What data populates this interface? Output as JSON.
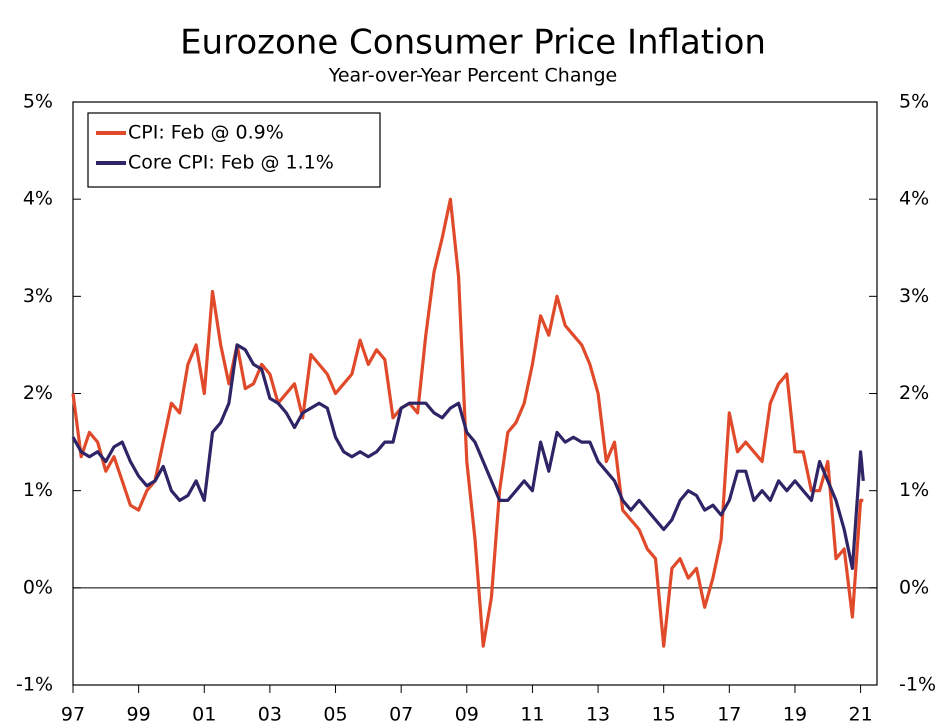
{
  "chart_data": {
    "type": "line",
    "title": "Eurozone Consumer Price Inflation",
    "subtitle": "Year-over-Year Percent Change",
    "x": [
      1997.0,
      1997.25,
      1997.5,
      1997.75,
      1998.0,
      1998.25,
      1998.5,
      1998.75,
      1999.0,
      1999.25,
      1999.5,
      1999.75,
      2000.0,
      2000.25,
      2000.5,
      2000.75,
      2001.0,
      2001.25,
      2001.5,
      2001.75,
      2002.0,
      2002.25,
      2002.5,
      2002.75,
      2003.0,
      2003.25,
      2003.5,
      2003.75,
      2004.0,
      2004.25,
      2004.5,
      2004.75,
      2005.0,
      2005.25,
      2005.5,
      2005.75,
      2006.0,
      2006.25,
      2006.5,
      2006.75,
      2007.0,
      2007.25,
      2007.5,
      2007.75,
      2008.0,
      2008.25,
      2008.5,
      2008.75,
      2009.0,
      2009.25,
      2009.5,
      2009.75,
      2010.0,
      2010.25,
      2010.5,
      2010.75,
      2011.0,
      2011.25,
      2011.5,
      2011.75,
      2012.0,
      2012.25,
      2012.5,
      2012.75,
      2013.0,
      2013.25,
      2013.5,
      2013.75,
      2014.0,
      2014.25,
      2014.5,
      2014.75,
      2015.0,
      2015.25,
      2015.5,
      2015.75,
      2016.0,
      2016.25,
      2016.5,
      2016.75,
      2017.0,
      2017.25,
      2017.5,
      2017.75,
      2018.0,
      2018.25,
      2018.5,
      2018.75,
      2019.0,
      2019.25,
      2019.5,
      2019.75,
      2020.0,
      2020.25,
      2020.5,
      2020.75,
      2021.0,
      2021.083
    ],
    "series": [
      {
        "name": "CPI: Feb @ 0.9%",
        "color": "#e04a2a",
        "values": [
          2.0,
          1.35,
          1.6,
          1.5,
          1.2,
          1.35,
          1.1,
          0.85,
          0.8,
          1.0,
          1.1,
          1.5,
          1.9,
          1.8,
          2.3,
          2.5,
          2.0,
          3.05,
          2.5,
          2.1,
          2.5,
          2.05,
          2.1,
          2.3,
          2.2,
          1.9,
          2.0,
          2.1,
          1.75,
          2.4,
          2.3,
          2.2,
          2.0,
          2.1,
          2.2,
          2.55,
          2.3,
          2.45,
          2.35,
          1.75,
          1.85,
          1.9,
          1.8,
          2.6,
          3.25,
          3.6,
          4.0,
          3.2,
          1.3,
          0.5,
          -0.6,
          -0.1,
          1.0,
          1.6,
          1.7,
          1.9,
          2.3,
          2.8,
          2.6,
          3.0,
          2.7,
          2.6,
          2.5,
          2.3,
          2.0,
          1.3,
          1.5,
          0.8,
          0.7,
          0.6,
          0.4,
          0.3,
          -0.6,
          0.2,
          0.3,
          0.1,
          0.2,
          -0.2,
          0.1,
          0.5,
          1.8,
          1.4,
          1.5,
          1.4,
          1.3,
          1.9,
          2.1,
          2.2,
          1.4,
          1.4,
          1.0,
          1.0,
          1.3,
          0.3,
          0.4,
          -0.3,
          0.9,
          0.9
        ]
      },
      {
        "name": "Core CPI: Feb @ 1.1%",
        "color": "#2e2466",
        "values": [
          1.55,
          1.4,
          1.35,
          1.4,
          1.3,
          1.45,
          1.5,
          1.3,
          1.15,
          1.05,
          1.1,
          1.25,
          1.0,
          0.9,
          0.95,
          1.1,
          0.9,
          1.6,
          1.7,
          1.9,
          2.5,
          2.45,
          2.3,
          2.25,
          1.95,
          1.9,
          1.8,
          1.65,
          1.8,
          1.85,
          1.9,
          1.85,
          1.55,
          1.4,
          1.35,
          1.4,
          1.35,
          1.4,
          1.5,
          1.5,
          1.85,
          1.9,
          1.9,
          1.9,
          1.8,
          1.75,
          1.85,
          1.9,
          1.6,
          1.5,
          1.3,
          1.1,
          0.9,
          0.9,
          1.0,
          1.1,
          1.0,
          1.5,
          1.2,
          1.6,
          1.5,
          1.55,
          1.5,
          1.5,
          1.3,
          1.2,
          1.1,
          0.9,
          0.8,
          0.9,
          0.8,
          0.7,
          0.6,
          0.7,
          0.9,
          1.0,
          0.95,
          0.8,
          0.85,
          0.75,
          0.9,
          1.2,
          1.2,
          0.9,
          1.0,
          0.9,
          1.1,
          1.0,
          1.1,
          1.0,
          0.9,
          1.3,
          1.1,
          0.9,
          0.6,
          0.2,
          1.4,
          1.1
        ]
      }
    ],
    "xlim": [
      1997,
      2021.5
    ],
    "xticks": [
      {
        "value": 1997,
        "label": "97"
      },
      {
        "value": 1999,
        "label": "99"
      },
      {
        "value": 2001,
        "label": "01"
      },
      {
        "value": 2003,
        "label": "03"
      },
      {
        "value": 2005,
        "label": "05"
      },
      {
        "value": 2007,
        "label": "07"
      },
      {
        "value": 2009,
        "label": "09"
      },
      {
        "value": 2011,
        "label": "11"
      },
      {
        "value": 2013,
        "label": "13"
      },
      {
        "value": 2015,
        "label": "15"
      },
      {
        "value": 2017,
        "label": "17"
      },
      {
        "value": 2019,
        "label": "19"
      },
      {
        "value": 2021,
        "label": "21"
      }
    ],
    "ylim": [
      -1,
      5
    ],
    "yticks": [
      {
        "value": -1,
        "label": "-1%"
      },
      {
        "value": 0,
        "label": "0%"
      },
      {
        "value": 1,
        "label": "1%"
      },
      {
        "value": 2,
        "label": "2%"
      },
      {
        "value": 3,
        "label": "3%"
      },
      {
        "value": 4,
        "label": "4%"
      },
      {
        "value": 5,
        "label": "5%"
      }
    ],
    "legend": "upper left"
  }
}
